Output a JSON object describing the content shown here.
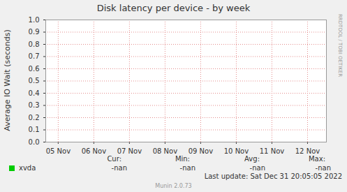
{
  "chart_data": {
    "type": "line",
    "title": "Disk latency per device - by week",
    "y_label": "Average IO Wait (seconds)",
    "x": [],
    "series": [
      {
        "name": "xvda",
        "color": "#00cc00",
        "values": [],
        "stats": [
          "-nan",
          "-nan",
          "-nan",
          "-nan"
        ]
      }
    ],
    "stat_labels": [
      "Cur:",
      "Min:",
      "Avg:",
      "Max:"
    ],
    "xlim": [
      4.65,
      12.53
    ],
    "xticks": [
      {
        "value": 5,
        "label": "05 Nov"
      },
      {
        "value": 6,
        "label": "06 Nov"
      },
      {
        "value": 7,
        "label": "07 Nov"
      },
      {
        "value": 8,
        "label": "08 Nov"
      },
      {
        "value": 9,
        "label": "09 Nov"
      },
      {
        "value": 10,
        "label": "10 Nov"
      },
      {
        "value": 11,
        "label": "11 Nov"
      },
      {
        "value": 12,
        "label": "12 Nov"
      }
    ],
    "ylim": [
      0,
      1
    ],
    "yticks": [
      {
        "value": 0,
        "label": "0.0"
      },
      0.1,
      0.2,
      0.3,
      0.4,
      0.5,
      0.6,
      0.7,
      0.8,
      0.9,
      {
        "value": 1,
        "label": "1.0"
      }
    ],
    "grid": true,
    "last_update": "Last update: Sat Dec 31 20:05:05 2022",
    "footer": "Munin 2.0.73",
    "watermark": "RRDTOOL / TOBI OETIKER"
  }
}
